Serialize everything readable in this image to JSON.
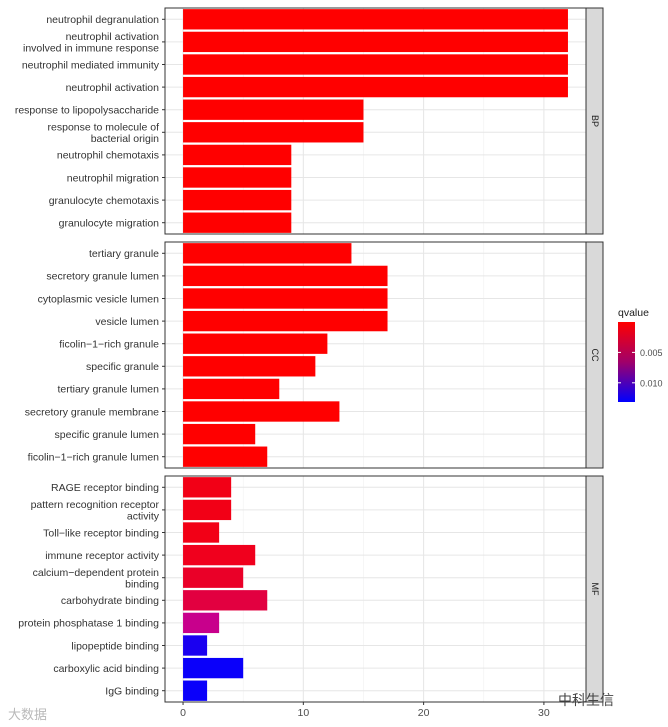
{
  "chart_data": {
    "type": "bar",
    "orientation": "horizontal",
    "xlim": [
      -1.5,
      33.5
    ],
    "x_ticks": [
      0,
      10,
      20,
      30
    ],
    "x_tick_labels": [
      "0",
      "10",
      "20",
      "30"
    ],
    "grid": true,
    "legend": {
      "title": "qvalue",
      "position": "right",
      "tick_labels": [
        "0.005",
        "0.010"
      ],
      "color_low": "#ff0000",
      "color_high": "#0000ff"
    },
    "panels": [
      {
        "label": "BP",
        "categories": [
          [
            "neutrophil degranulation"
          ],
          [
            "neutrophil activation",
            "involved in immune response"
          ],
          [
            "neutrophil mediated immunity"
          ],
          [
            "neutrophil activation"
          ],
          [
            "response to lipopolysaccharide"
          ],
          [
            "response to molecule of",
            "bacterial origin"
          ],
          [
            "neutrophil chemotaxis"
          ],
          [
            "neutrophil migration"
          ],
          [
            "granulocyte chemotaxis"
          ],
          [
            "granulocyte migration"
          ]
        ],
        "values": [
          32,
          32,
          32,
          32,
          15,
          15,
          9,
          9,
          9,
          9
        ],
        "colors": [
          "#ff0000",
          "#ff0000",
          "#ff0000",
          "#ff0000",
          "#ff0000",
          "#ff0000",
          "#ff0000",
          "#ff0000",
          "#ff0000",
          "#ff0000"
        ]
      },
      {
        "label": "CC",
        "categories": [
          [
            "tertiary granule"
          ],
          [
            "secretory granule lumen"
          ],
          [
            "cytoplasmic vesicle lumen"
          ],
          [
            "vesicle lumen"
          ],
          [
            "ficolin−1−rich granule"
          ],
          [
            "specific granule"
          ],
          [
            "tertiary granule lumen"
          ],
          [
            "secretory granule membrane"
          ],
          [
            "specific granule lumen"
          ],
          [
            "ficolin−1−rich granule lumen"
          ]
        ],
        "values": [
          14,
          17,
          17,
          17,
          12,
          11,
          8,
          13,
          6,
          7
        ],
        "colors": [
          "#ff0000",
          "#ff0000",
          "#ff0000",
          "#ff0000",
          "#ff0000",
          "#ff0000",
          "#ff0000",
          "#ff0000",
          "#ff0000",
          "#ff0000"
        ]
      },
      {
        "label": "MF",
        "categories": [
          [
            "RAGE receptor binding"
          ],
          [
            "pattern recognition receptor",
            "activity"
          ],
          [
            "Toll−like receptor binding"
          ],
          [
            "immune receptor activity"
          ],
          [
            "calcium−dependent protein",
            "binding"
          ],
          [
            "carbohydrate binding"
          ],
          [
            "protein phosphatase 1 binding"
          ],
          [
            "lipopeptide binding"
          ],
          [
            "carboxylic acid binding"
          ],
          [
            "IgG binding"
          ]
        ],
        "values": [
          4,
          4,
          3,
          6,
          5,
          7,
          3,
          2,
          5,
          2
        ],
        "colors": [
          "#f20016",
          "#f20016",
          "#f20016",
          "#f0001d",
          "#ea0028",
          "#e20040",
          "#c8008c",
          "#1a00f0",
          "#0a00fa",
          "#0a00fa"
        ]
      }
    ]
  },
  "watermark": {
    "left": "大数据",
    "right": "中科生信"
  }
}
